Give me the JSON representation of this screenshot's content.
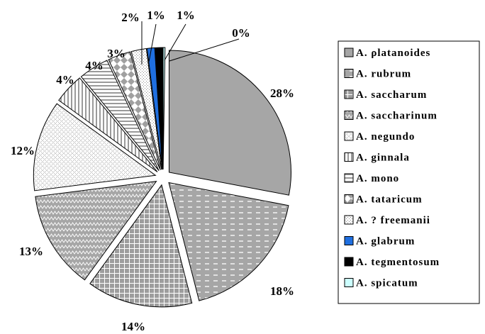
{
  "chart_data": {
    "type": "pie",
    "title": "",
    "slices": [
      {
        "label": "A. ρlatanoides",
        "value": 28,
        "display": "28%",
        "pattern": "gray"
      },
      {
        "label": "A. rubrum",
        "value": 18,
        "display": "18%",
        "pattern": "dashes"
      },
      {
        "label": "A. saccharum",
        "value": 14,
        "display": "14%",
        "pattern": "grid"
      },
      {
        "label": "A. saccharinum",
        "value": 13,
        "display": "13%",
        "pattern": "zigzag"
      },
      {
        "label": "A. negundo",
        "value": 12,
        "display": "12%",
        "pattern": "dots"
      },
      {
        "label": "A. ginnala",
        "value": 4,
        "display": "4%",
        "pattern": "vlines"
      },
      {
        "label": "A. mono",
        "value": 4,
        "display": "4%",
        "pattern": "hlines"
      },
      {
        "label": "A. tataricum",
        "value": 3,
        "display": "3%",
        "pattern": "diamond"
      },
      {
        "label": "A. ? freemanii",
        "value": 2,
        "display": "2%",
        "pattern": "lightdots"
      },
      {
        "label": "A. glabrum",
        "value": 1,
        "display": "1%",
        "pattern": "blue"
      },
      {
        "label": "A. tegmentosum",
        "value": 1,
        "display": "1%",
        "pattern": "black"
      },
      {
        "label": "A. spicatum",
        "value": 0,
        "display": "0%",
        "pattern": "cyan"
      }
    ],
    "legend_position": "right",
    "colors": {
      "gray": "#a6a6a6",
      "blue": "#1f6fe0",
      "black": "#000000",
      "cyan": "#ccffff",
      "outline": "#000000"
    }
  }
}
